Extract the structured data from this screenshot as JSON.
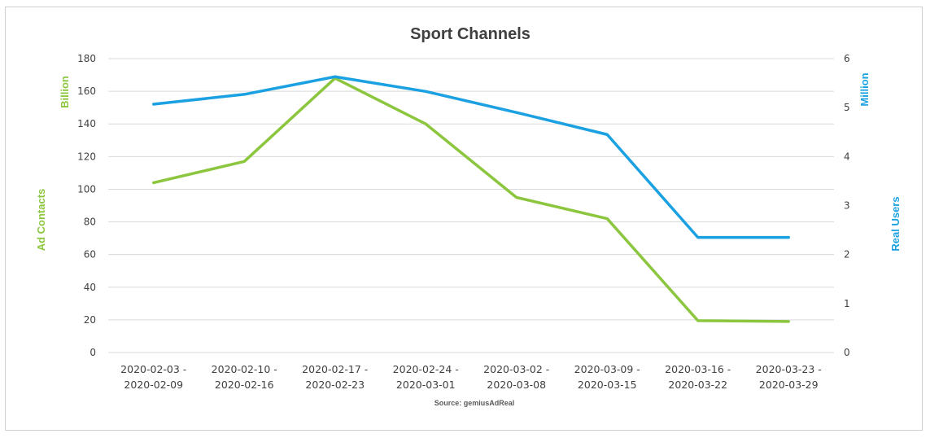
{
  "chart_data": {
    "type": "line",
    "title": "Sport Channels",
    "source": "Source: gemiusAdReal",
    "categories": [
      [
        "2020-02-03 -",
        "2020-02-09"
      ],
      [
        "2020-02-10 -",
        "2020-02-16"
      ],
      [
        "2020-02-17 -",
        "2020-02-23"
      ],
      [
        "2020-02-24 -",
        "2020-03-01"
      ],
      [
        "2020-03-02 -",
        "2020-03-08"
      ],
      [
        "2020-03-09 -",
        "2020-03-15"
      ],
      [
        "2020-03-16 -",
        "2020-03-22"
      ],
      [
        "2020-03-23 -",
        "2020-03-29"
      ]
    ],
    "left_axis": {
      "label": "Ad Contacts",
      "unit": "Billion",
      "ylim": [
        0,
        180
      ],
      "ticks": [
        0,
        20,
        40,
        60,
        80,
        100,
        120,
        140,
        160,
        180
      ]
    },
    "right_axis": {
      "label": "Real Users",
      "unit": "Million",
      "ylim": [
        0,
        6
      ],
      "ticks": [
        0,
        1,
        2,
        3,
        4,
        5,
        6
      ]
    },
    "series": [
      {
        "axis": "left",
        "color": "#8cc63f",
        "values": [
          104,
          117,
          168,
          140,
          95,
          82,
          19.5,
          19
        ]
      },
      {
        "axis": "right",
        "color": "#1ba1e2",
        "values": [
          5.07,
          5.27,
          5.63,
          5.33,
          4.9,
          4.45,
          2.35,
          2.35
        ]
      }
    ],
    "grid": true,
    "legend": "none"
  }
}
